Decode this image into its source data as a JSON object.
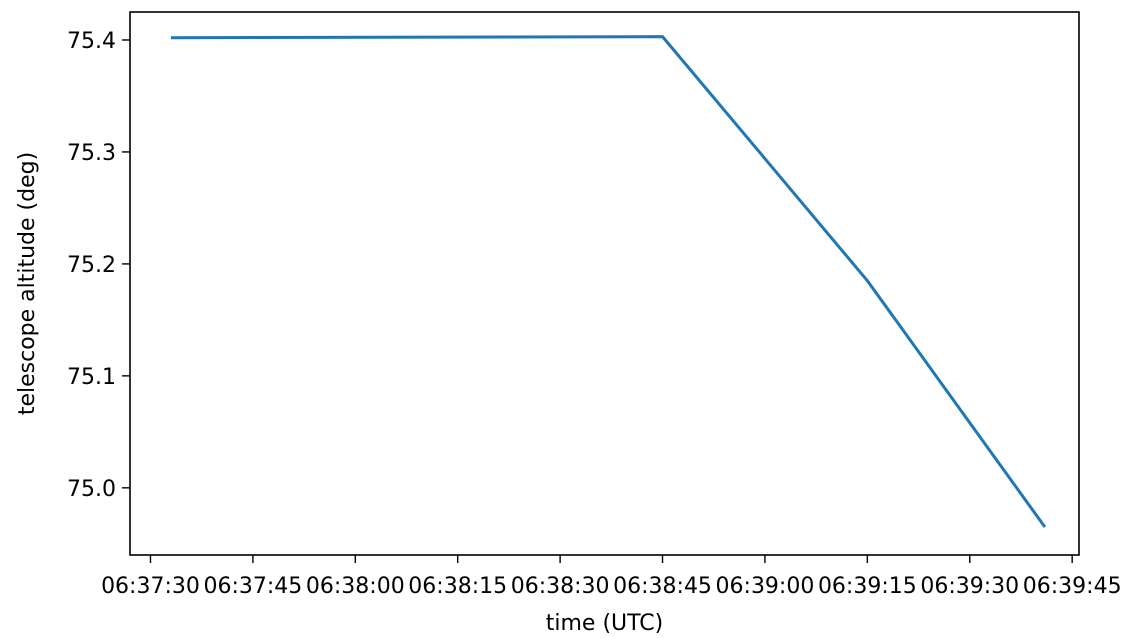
{
  "chart_data": {
    "type": "line",
    "title": "",
    "xlabel": "time (UTC)",
    "ylabel": "telescope altitude (deg)",
    "x_tick_labels": [
      "06:37:30",
      "06:37:45",
      "06:38:00",
      "06:38:15",
      "06:38:30",
      "06:38:45",
      "06:39:00",
      "06:39:15",
      "06:39:30",
      "06:39:45"
    ],
    "y_ticks": [
      75.0,
      75.1,
      75.2,
      75.3,
      75.4
    ],
    "y_tick_labels": [
      "75.0",
      "75.1",
      "75.2",
      "75.3",
      "75.4"
    ],
    "xlim": [
      "06:37:27",
      "06:39:46"
    ],
    "ylim": [
      74.94,
      75.425
    ],
    "grid": false,
    "legend": "none",
    "series": [
      {
        "color": "#1f77b4",
        "points": [
          {
            "x": "06:37:33",
            "y": 75.402
          },
          {
            "x": "06:38:45",
            "y": 75.403
          },
          {
            "x": "06:39:15",
            "y": 75.185
          },
          {
            "x": "06:39:41",
            "y": 74.965
          }
        ]
      }
    ]
  }
}
